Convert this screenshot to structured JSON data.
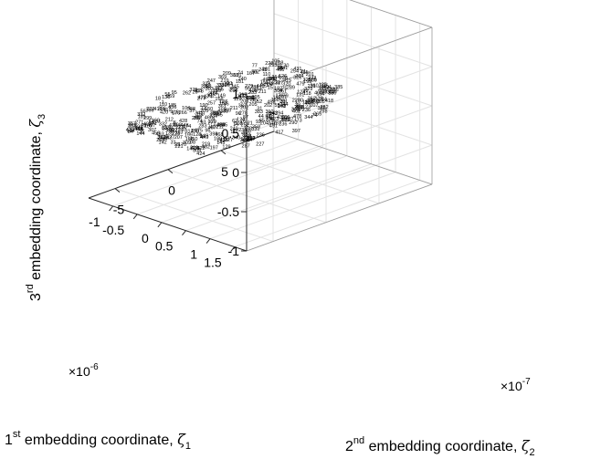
{
  "chart_data": {
    "type": "scatter",
    "title": "",
    "projection": "3d",
    "grid": true,
    "box": true,
    "marker": "number-labels",
    "axes": {
      "x": {
        "label": "1st embedding coordinate, ζ1",
        "label_main": "1",
        "label_sup": "st",
        "label_text": " embedding coordinate, ",
        "label_sym": "ζ",
        "label_sub": "1",
        "exponent_prefix": "×10",
        "exponent": "-6",
        "ticks": [
          "-1",
          "-0.5",
          "0",
          "0.5",
          "1",
          "1.5"
        ],
        "tick_values": [
          -1,
          -0.5,
          0,
          0.5,
          1,
          1.5
        ],
        "range": [
          -1.5,
          1.75
        ]
      },
      "y": {
        "label": "2nd embedding coordinate, ζ2",
        "label_main": "2",
        "label_sup": "nd",
        "label_text": " embedding coordinate, ",
        "label_sym": "ζ",
        "label_sub": "2",
        "exponent_prefix": "×10",
        "exponent": "-7",
        "ticks": [
          "-5",
          "0",
          "5"
        ],
        "tick_values": [
          -5,
          0,
          5
        ],
        "range": [
          -7.5,
          10
        ]
      },
      "z": {
        "label": "3rd embedding coordinate, ζ3",
        "label_main": "3",
        "label_sup": "rd",
        "label_text": " embedding coordinate, ",
        "label_sym": "ζ",
        "label_sub": "3",
        "ticks": [
          "-1",
          "-0.5",
          "0",
          "0.5",
          "1"
        ],
        "tick_values": [
          -1,
          -0.5,
          0,
          0.5,
          1
        ],
        "range": [
          -1,
          1
        ]
      }
    },
    "points": [
      {
        "label": "108",
        "x": -1.15,
        "y": 8.5,
        "z": 0
      },
      {
        "label": "41",
        "x": -1.05,
        "y": 8.2,
        "z": 0
      },
      {
        "label": "241",
        "x": -0.95,
        "y": 8.0,
        "z": 0
      },
      {
        "label": "254",
        "x": -0.75,
        "y": 8.1,
        "z": 0
      },
      {
        "label": "171",
        "x": -0.3,
        "y": 7.7,
        "z": 0
      },
      {
        "label": "247",
        "x": -1.35,
        "y": 3.0,
        "z": 0
      },
      {
        "label": "328",
        "x": -1.3,
        "y": 2.3,
        "z": 0
      },
      {
        "label": "484",
        "x": -0.95,
        "y": 1.4,
        "z": 0
      },
      {
        "label": "287",
        "x": -0.7,
        "y": 4.1,
        "z": 0
      },
      {
        "label": "419",
        "x": -0.95,
        "y": -3.0,
        "z": 0
      },
      {
        "label": "416",
        "x": -0.8,
        "y": -3.0,
        "z": 0
      },
      {
        "label": "273",
        "x": -0.3,
        "y": -4.8,
        "z": 0
      },
      {
        "label": "14576",
        "x": 0.45,
        "y": -7.2,
        "z": 0
      },
      {
        "label": "322",
        "x": 0.55,
        "y": -6.7,
        "z": 0
      },
      {
        "label": "227",
        "x": 1.05,
        "y": -3.4,
        "z": 0
      },
      {
        "label": "417",
        "x": 0.9,
        "y": -0.9,
        "z": 0
      },
      {
        "label": "397",
        "x": 1.05,
        "y": 0.0,
        "z": 0
      },
      {
        "label": "147",
        "x": 0.8,
        "y": -3.1,
        "z": 0
      },
      {
        "label": "287",
        "x": 0.95,
        "y": -4.3,
        "z": 0
      },
      {
        "label": "233",
        "x": 0.45,
        "y": -2.3,
        "z": 0
      },
      {
        "label": "347",
        "x": 0.55,
        "y": 0.0,
        "z": 0
      },
      {
        "label": "128",
        "x": 0.1,
        "y": -5.0,
        "z": 0
      },
      {
        "label": "98",
        "x": 0.3,
        "y": -6.2,
        "z": 0
      },
      {
        "label": "450",
        "x": 0.2,
        "y": -5.8,
        "z": 0
      },
      {
        "label": "333",
        "x": -0.3,
        "y": -0.6,
        "z": 0
      },
      {
        "label": "52",
        "x": -0.2,
        "y": 2.4,
        "z": 0
      },
      {
        "label": "55",
        "x": 0.1,
        "y": 2.7,
        "z": 0
      },
      {
        "label": "340",
        "x": 0.4,
        "y": 2.9,
        "z": 0
      },
      {
        "label": "415",
        "x": -0.55,
        "y": 6.5,
        "z": 0
      },
      {
        "label": "37",
        "x": -0.65,
        "y": -1.9,
        "z": 0
      }
    ],
    "anonymous_point_count": 360
  }
}
